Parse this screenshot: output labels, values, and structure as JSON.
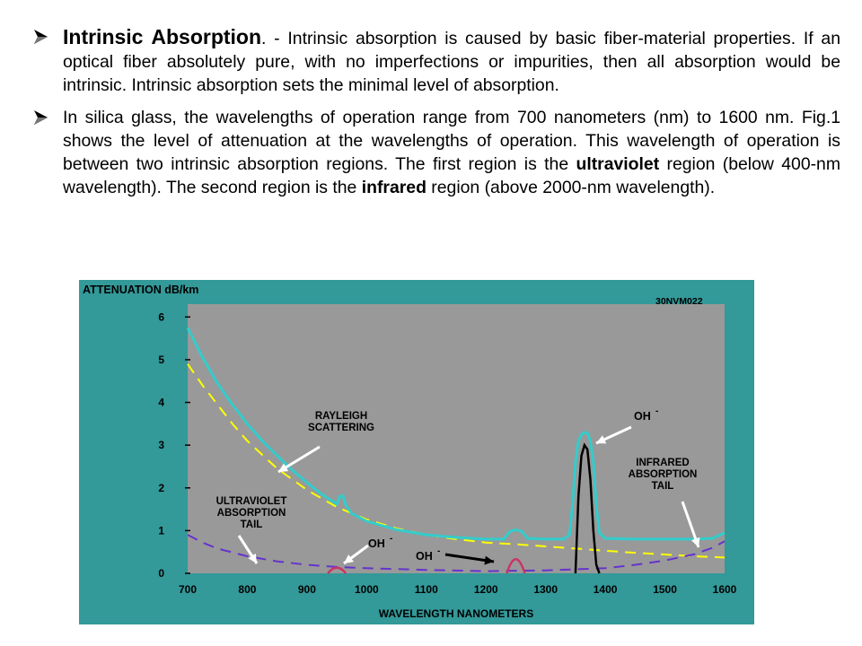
{
  "bullets": [
    {
      "lead": "Intrinsic Absorption",
      "text": ". - Intrinsic absorption is caused by basic fiber-material properties. If an optical fiber absolutely pure, with no imperfections or impurities, then all absorption would be intrinsic. Intrinsic absorption sets the minimal level of absorption."
    },
    {
      "segments": [
        "In silica glass, the wavelengths of operation range from 700 nanometers (nm) to 1600 nm. Fig.1 shows the level of attenuation at the wavelengths of operation. This wavelength of operation is between two intrinsic absorption regions. The first region is the ",
        "ultraviolet",
        " region (below 400-nm wavelength). The second region is the ",
        "infrared",
        " region (above 2000-nm wavelength)."
      ]
    }
  ],
  "colors": {
    "figure_background": "#339999",
    "plot_background": "#999999",
    "total_curve": "#33cccc",
    "rayleigh_curve": "#ffff00",
    "uv_ir_curve": "#6633cc",
    "oh_peak": "#000000",
    "small_peak": "#cc3366"
  },
  "chart_data": {
    "type": "line",
    "ylabel": "ATTENUATION  dB/km",
    "xlabel": "WAVELENGTH NANOMETERS",
    "code": "30NVM022",
    "x_ticks": [
      "700",
      "800",
      "900",
      "1000",
      "1100",
      "1200",
      "1300",
      "1400",
      "1500",
      "1600"
    ],
    "y_ticks": [
      "0",
      "1",
      "2",
      "3",
      "4",
      "5",
      "6"
    ],
    "xlim": [
      700,
      1600
    ],
    "ylim": [
      0,
      6.3
    ],
    "grid": false,
    "annotations": {
      "rayleigh": [
        "RAYLEIGH",
        "SCATTERING"
      ],
      "uv": [
        "ULTRAVIOLET",
        "ABSORPTION",
        "TAIL"
      ],
      "ir": [
        "INFRARED",
        "ABSORPTION",
        "TAIL"
      ],
      "oh_top": "OH",
      "oh_mid": "OH",
      "oh_low": "OH",
      "oh_sup": "-"
    },
    "series": [
      {
        "key": "total",
        "x": [
          700,
          725,
          750,
          775,
          800,
          825,
          850,
          875,
          900,
          925,
          950,
          955,
          960,
          965,
          975,
          1000,
          1050,
          1100,
          1150,
          1200,
          1230,
          1240,
          1250,
          1260,
          1270,
          1300,
          1330,
          1340,
          1345,
          1350,
          1355,
          1360,
          1365,
          1370,
          1375,
          1380,
          1385,
          1390,
          1400,
          1450,
          1500,
          1550,
          1580,
          1600
        ],
        "y": [
          5.75,
          5.05,
          4.45,
          3.95,
          3.5,
          3.1,
          2.75,
          2.42,
          2.12,
          1.85,
          1.62,
          1.8,
          1.82,
          1.6,
          1.4,
          1.22,
          1.02,
          0.9,
          0.84,
          0.8,
          0.8,
          0.98,
          1.02,
          0.98,
          0.82,
          0.8,
          0.8,
          0.9,
          1.6,
          2.6,
          3.1,
          3.25,
          3.3,
          3.28,
          3.1,
          2.6,
          1.6,
          0.95,
          0.82,
          0.8,
          0.8,
          0.8,
          0.82,
          0.95
        ]
      },
      {
        "key": "rayleigh",
        "x": [
          700,
          725,
          750,
          775,
          800,
          850,
          900,
          950,
          1000,
          1050,
          1100,
          1150,
          1200,
          1250,
          1300,
          1350,
          1400,
          1450,
          1500,
          1550,
          1600
        ],
        "y": [
          4.9,
          4.4,
          3.95,
          3.5,
          3.1,
          2.45,
          1.95,
          1.55,
          1.26,
          1.05,
          0.9,
          0.8,
          0.72,
          0.68,
          0.63,
          0.58,
          0.53,
          0.48,
          0.44,
          0.4,
          0.37
        ]
      },
      {
        "key": "uv",
        "x": [
          700,
          725,
          750,
          800,
          850,
          900,
          950,
          1000,
          1100,
          1200,
          1300,
          1400,
          1450,
          1500,
          1550,
          1580,
          1600
        ],
        "y": [
          0.9,
          0.72,
          0.58,
          0.4,
          0.28,
          0.2,
          0.15,
          0.12,
          0.08,
          0.05,
          0.07,
          0.12,
          0.2,
          0.3,
          0.45,
          0.6,
          0.75
        ]
      },
      {
        "key": "oh_peak",
        "x": [
          1350,
          1355,
          1360,
          1365,
          1370,
          1375,
          1380,
          1385,
          1390
        ],
        "y": [
          0,
          1.8,
          2.75,
          3.0,
          2.9,
          2.2,
          1.0,
          0.2,
          0
        ]
      }
    ]
  }
}
